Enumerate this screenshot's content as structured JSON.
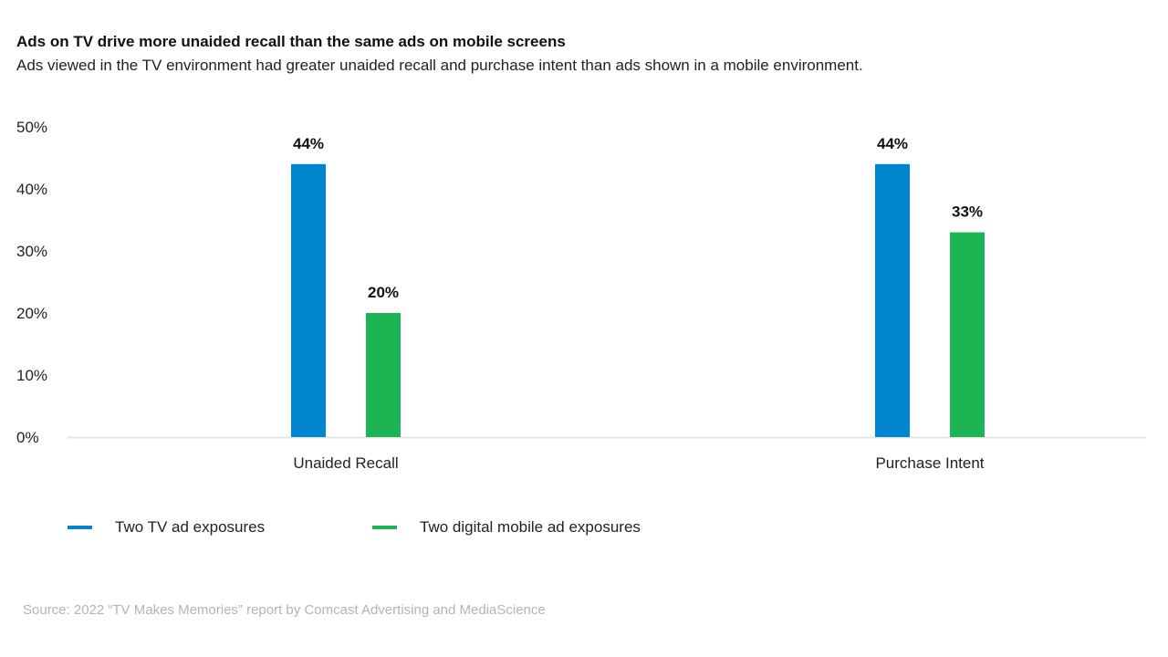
{
  "header": {
    "title": "Ads on TV drive more unaided recall than the same ads on mobile screens",
    "subtitle": "Ads viewed in the TV environment had greater unaided recall and purchase intent than ads shown in a mobile environment."
  },
  "colors": {
    "tv": "#0086CE",
    "mobile": "#1DB554",
    "axis": "#e6e6e6"
  },
  "chart_data": {
    "type": "bar",
    "title": "Ads on TV drive more unaided recall than the same ads on mobile screens",
    "subtitle": "Ads viewed in the TV environment had greater unaided recall and purchase intent than ads shown in a mobile environment.",
    "xlabel": "",
    "ylabel": "",
    "categories": [
      "Unaided Recall",
      "Purchase Intent"
    ],
    "series": [
      {
        "name": "Two TV ad exposures",
        "values": [
          44,
          44
        ],
        "labels": [
          "44%",
          "44%"
        ]
      },
      {
        "name": "Two digital mobile ad exposures",
        "values": [
          20,
          33
        ],
        "labels": [
          "20%",
          "33%"
        ]
      }
    ],
    "ylim": [
      0,
      50
    ],
    "yticks": [
      0,
      10,
      20,
      30,
      40,
      50
    ],
    "ytick_labels": [
      "0%",
      "10%",
      "20%",
      "30%",
      "40%",
      "50%"
    ],
    "grid": false,
    "legend_position": "bottom-left"
  },
  "legend": [
    {
      "label": "Two TV ad exposures"
    },
    {
      "label": "Two digital mobile ad exposures"
    }
  ],
  "footer": {
    "source": "Source: 2022 “TV Makes Memories” report by Comcast Advertising and MediaScience"
  }
}
